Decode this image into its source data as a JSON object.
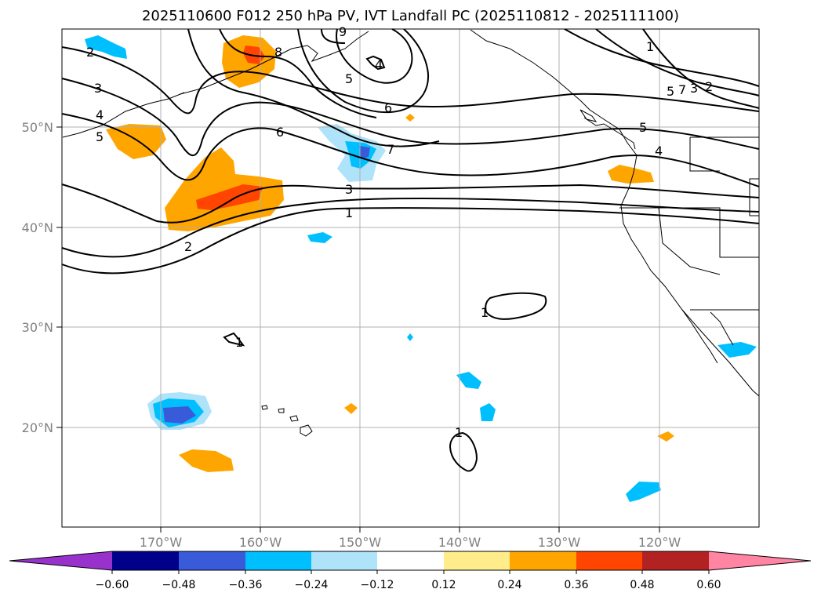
{
  "title": "2025110600 F012 250 hPa PV, IVT Landfall PC (2025110812 - 2025111100)",
  "map": {
    "lat_labels": [
      "50°N",
      "40°N",
      "30°N",
      "20°N"
    ],
    "lon_labels": [
      "170°W",
      "160°W",
      "150°W",
      "140°W",
      "130°W",
      "120°W"
    ],
    "contour_labels": [
      "1",
      "1",
      "2",
      "2",
      "2",
      "3",
      "3",
      "3",
      "4",
      "4",
      "4",
      "5",
      "5",
      "5",
      "5",
      "6",
      "6",
      "7",
      "7",
      "8",
      "9",
      "1",
      "1",
      "1",
      "1"
    ],
    "colors": {
      "contour": "#000000",
      "coast": "#000000",
      "grid": "#b0b0b0"
    }
  },
  "colorbar": {
    "colors": [
      "#9932cc",
      "#00008b",
      "#3a5bd9",
      "#00bfff",
      "#aee3fa",
      "#ffffff",
      "#ffec8b",
      "#ffa500",
      "#ff4500",
      "#b22222",
      "#ff85a2"
    ],
    "labels": [
      "−0.60",
      "−0.48",
      "−0.36",
      "−0.24",
      "−0.12",
      "0.12",
      "0.24",
      "0.36",
      "0.48",
      "0.60"
    ]
  }
}
